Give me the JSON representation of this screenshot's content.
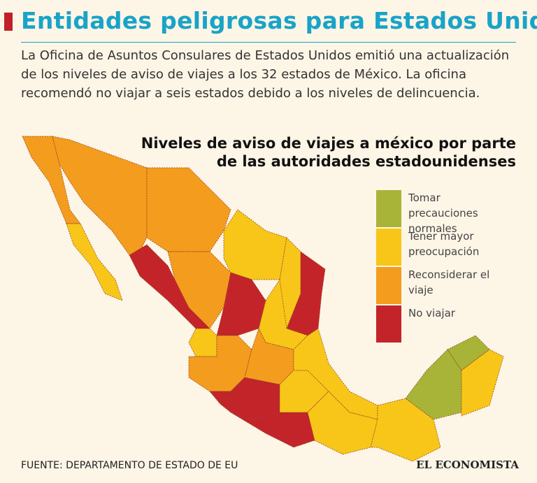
{
  "header": {
    "title": "Entidades peligrosas para Estados Unidos",
    "intro": "La Oficina de Asuntos Consulares de Estados Unidos emitió una actualización de los niveles de aviso de viajes a los 32 estados de México. La oficina recomendó no viajar a seis estados debido a los niveles de delincuencia."
  },
  "map": {
    "title": "Niveles de aviso de viajes a méxico por parte de las autoridades estadounidenses",
    "legend": [
      {
        "label": "Tomar precauciones normales",
        "color": "#a8b437"
      },
      {
        "label": "Tener mayor preocupación",
        "color": "#f7c619"
      },
      {
        "label": "Reconsiderar el viaje",
        "color": "#f39c1e"
      },
      {
        "label": "No viajar",
        "color": "#c3242a"
      }
    ]
  },
  "footer": {
    "source": "FUENTE: DEPARTAMENTO DE ESTADO DE EU",
    "brand": "EL ECONOMISTA"
  }
}
